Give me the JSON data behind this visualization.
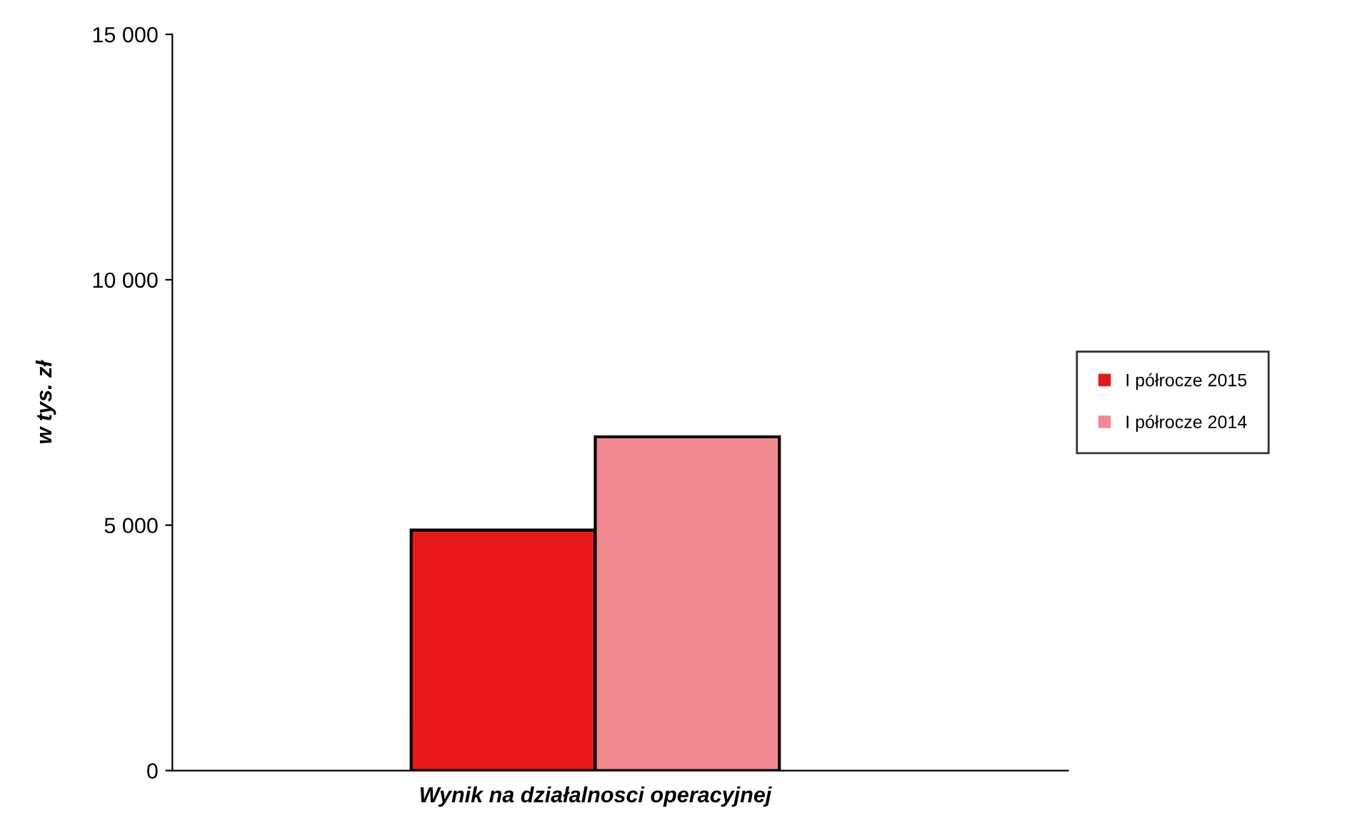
{
  "chart_data": {
    "type": "bar",
    "ylabel": "w tys. zł",
    "categories": [
      "Wynik na działalnosci operacyjnej"
    ],
    "series": [
      {
        "name": "I półrocze 2015",
        "color": "#e8191b",
        "values": [
          4900
        ]
      },
      {
        "name": "I półrocze 2014",
        "color": "#f08a90",
        "values": [
          6800
        ]
      }
    ],
    "ylim": [
      0,
      15000
    ],
    "yticks": [
      {
        "value": 0,
        "label": "0"
      },
      {
        "value": 5000,
        "label": "5 000"
      },
      {
        "value": 10000,
        "label": "10 000"
      },
      {
        "value": 15000,
        "label": "15 000"
      }
    ],
    "grid": false,
    "legend": "right"
  }
}
